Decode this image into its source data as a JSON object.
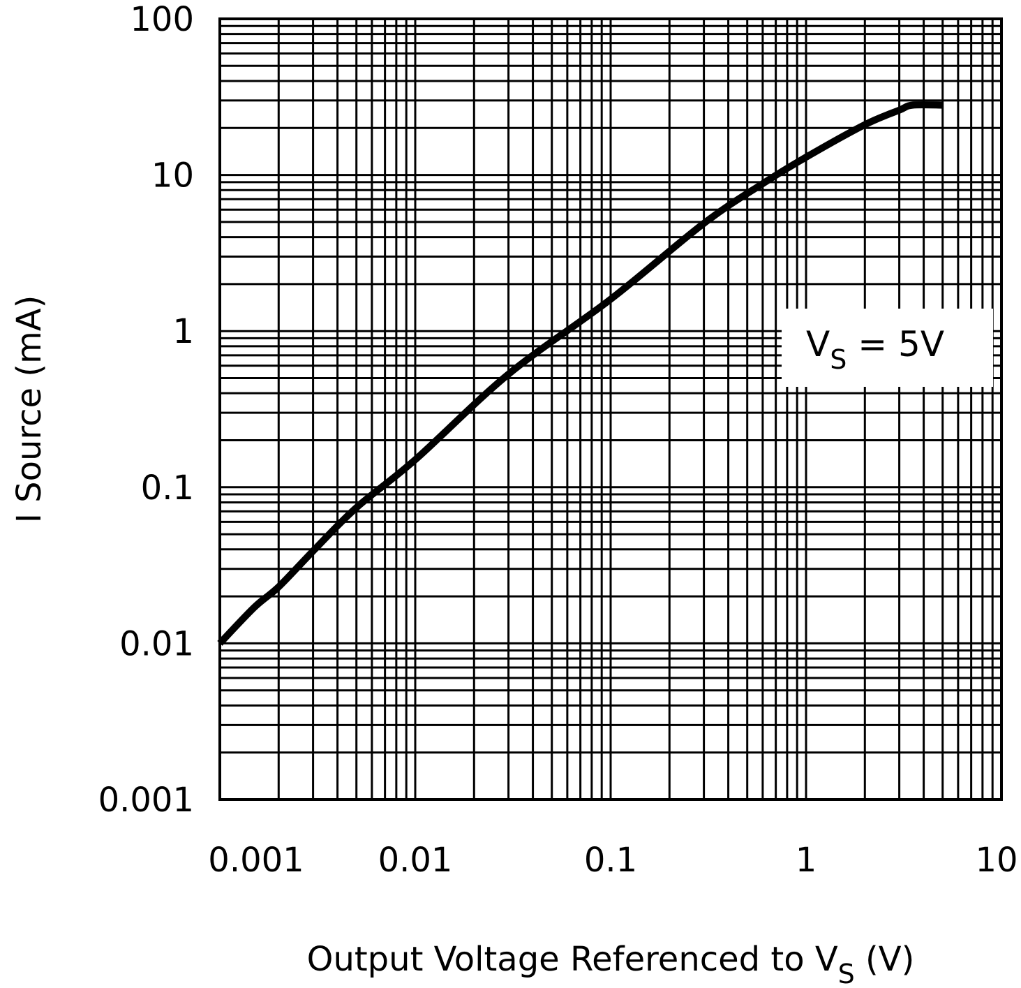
{
  "chart_data": {
    "type": "line",
    "title": "",
    "xlabel": "Output Voltage Referenced to V",
    "xlabel_sub": "S",
    "xlabel_unit": " (V)",
    "ylabel": "I Source (mA)",
    "xscale": "log",
    "yscale": "log",
    "xlim": [
      0.001,
      10
    ],
    "ylim": [
      0.001,
      100
    ],
    "grid": true,
    "x_ticks": [
      0.001,
      0.01,
      0.1,
      1,
      10
    ],
    "x_tick_labels": [
      "0.001",
      "0.01",
      "0.1",
      "1",
      "10"
    ],
    "y_ticks": [
      0.001,
      0.01,
      0.1,
      1,
      10,
      100
    ],
    "y_tick_labels": [
      "0.001",
      "0.01",
      "0.1",
      "1",
      "10",
      "100"
    ],
    "annotation": {
      "main": "V",
      "sub": "S",
      "rest": " = 5V"
    },
    "series": [
      {
        "color": "#000000",
        "points": [
          [
            0.001,
            0.01
          ],
          [
            0.0015,
            0.017
          ],
          [
            0.002,
            0.023
          ],
          [
            0.003,
            0.039
          ],
          [
            0.005,
            0.074
          ],
          [
            0.01,
            0.15
          ],
          [
            0.03,
            0.53
          ],
          [
            0.1,
            1.6
          ],
          [
            0.3,
            4.9
          ],
          [
            0.6,
            8.8
          ],
          [
            1,
            13
          ],
          [
            2,
            21
          ],
          [
            3,
            26
          ],
          [
            3.5,
            28
          ],
          [
            5,
            28
          ]
        ]
      }
    ]
  }
}
